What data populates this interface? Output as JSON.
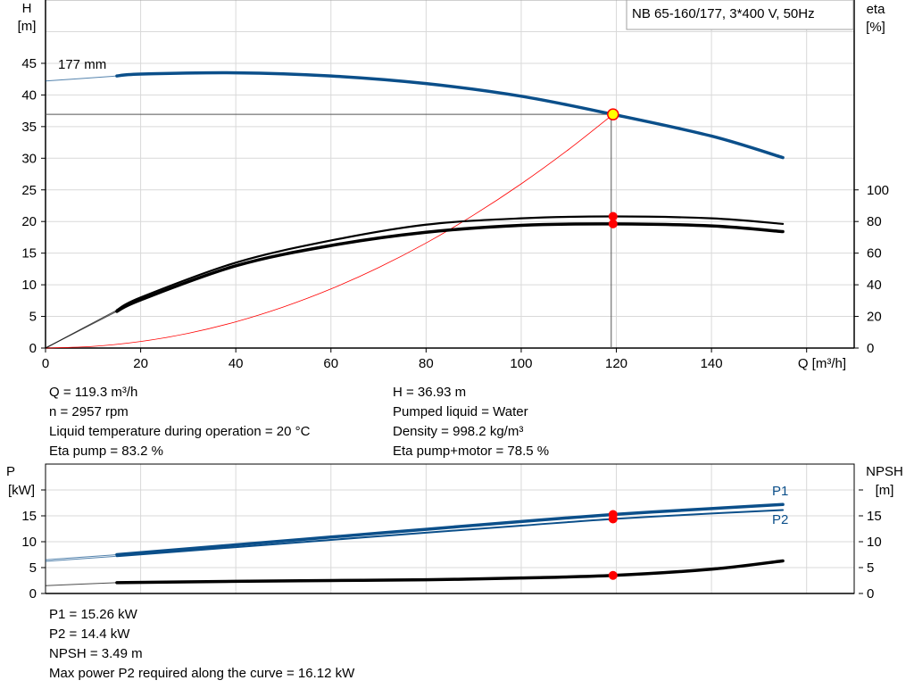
{
  "title_box": "NB 65-160/177, 3*400 V, 50Hz",
  "colors": {
    "head": "#0b4f8a",
    "eta": "#000000",
    "system": "#ff0000",
    "op_point_fill": "#ffff00",
    "op_point_stroke": "#ff0000",
    "marker": "#ff0000",
    "power": "#0b4f8a",
    "npsh": "#000000",
    "grid": "#d9d9d9"
  },
  "chart_data": [
    {
      "type": "line",
      "xlabel": "Q [m³/h]",
      "ylabel": "H\n[m]",
      "ylabel_lines": [
        "H",
        "[m]"
      ],
      "y2label_lines": [
        "eta",
        "[%]"
      ],
      "xlim": [
        0,
        170
      ],
      "ylim": [
        0,
        55
      ],
      "y2lim": [
        0,
        220
      ],
      "xticks": [
        "0",
        "20",
        "40",
        "60",
        "80",
        "100",
        "120",
        "140"
      ],
      "yticks": [
        "0",
        "5",
        "10",
        "15",
        "20",
        "25",
        "30",
        "35",
        "40",
        "45"
      ],
      "y2ticks": [
        "0",
        "20",
        "40",
        "60",
        "80",
        "100"
      ],
      "grid": true,
      "curve_label": "177 mm",
      "series": [
        {
          "key": "head",
          "axis": "H",
          "extrapolated_to": 15,
          "x": [
            0,
            15,
            20,
            40,
            60,
            80,
            100,
            119.3,
            140,
            155
          ],
          "y": [
            42.2,
            43.0,
            43.3,
            43.5,
            43.0,
            41.8,
            39.8,
            36.93,
            33.5,
            30.1
          ]
        },
        {
          "key": "eta_pump",
          "axis": "eta",
          "extrapolated_to": 15,
          "x": [
            0,
            15,
            20,
            40,
            60,
            80,
            100,
            119.3,
            140,
            155
          ],
          "y": [
            0,
            24,
            32,
            54,
            68,
            78,
            82,
            83.2,
            82,
            78.5
          ]
        },
        {
          "key": "eta_pump_motor",
          "axis": "eta",
          "extrapolated_to": 15,
          "x": [
            0,
            15,
            20,
            40,
            60,
            80,
            100,
            119.3,
            140,
            155
          ],
          "y": [
            0,
            23.2,
            30.5,
            52,
            64.8,
            73.2,
            77.6,
            78.5,
            77.2,
            73.6
          ]
        },
        {
          "key": "system",
          "axis": "H",
          "x": [
            0,
            10,
            20,
            30,
            40,
            50,
            60,
            70,
            80,
            90,
            100,
            110,
            119.3
          ],
          "y": [
            0,
            0.26,
            1.04,
            2.33,
            4.15,
            6.49,
            9.34,
            12.71,
            16.6,
            21.02,
            25.95,
            31.4,
            36.93
          ]
        }
      ],
      "operating_point": {
        "Q": 119.3,
        "H": 36.93,
        "eta_pump": 83.2,
        "eta_pump_motor": 78.5
      }
    },
    {
      "type": "line",
      "ylabel_lines": [
        "P",
        "[kW]"
      ],
      "y2label_lines": [
        "NPSH",
        "[m]"
      ],
      "xlim": [
        0,
        170
      ],
      "ylim": [
        0,
        25
      ],
      "yticks": [
        "0",
        "5",
        "10",
        "15"
      ],
      "y2ticks": [
        "0",
        "5",
        "10",
        "15"
      ],
      "grid": true,
      "series": [
        {
          "key": "P1",
          "name": "P1",
          "extrapolated_to": 15,
          "x": [
            0,
            15,
            40,
            60,
            80,
            100,
            119.3,
            140,
            155
          ],
          "y": [
            6.5,
            7.5,
            9.4,
            10.9,
            12.4,
            13.9,
            15.26,
            16.4,
            17.2
          ]
        },
        {
          "key": "P2",
          "name": "P2",
          "extrapolated_to": 15,
          "x": [
            0,
            15,
            40,
            60,
            80,
            100,
            119.3,
            140,
            155
          ],
          "y": [
            6.2,
            7.2,
            8.95,
            10.35,
            11.75,
            13.1,
            14.4,
            15.45,
            16.12
          ]
        },
        {
          "key": "NPSH",
          "extrapolated_to": 15,
          "x": [
            0,
            15,
            40,
            60,
            80,
            100,
            119.3,
            140,
            155
          ],
          "y": [
            1.5,
            2.1,
            2.35,
            2.5,
            2.65,
            3.0,
            3.49,
            4.7,
            6.3
          ]
        }
      ],
      "operating_point": {
        "Q": 119.3,
        "P1": 15.26,
        "P2": 14.4,
        "NPSH": 3.49
      }
    }
  ],
  "info_top": {
    "left": [
      "Q = 119.3 m³/h",
      "n = 2957 rpm",
      "Liquid temperature during operation = 20 °C",
      "Eta pump = 83.2 %"
    ],
    "right": [
      "H = 36.93 m",
      "Pumped liquid = Water",
      "Density = 998.2 kg/m³",
      "Eta pump+motor = 78.5 %"
    ]
  },
  "info_bottom": [
    "P1 = 15.26 kW",
    "P2 = 14.4 kW",
    "NPSH = 3.49 m",
    "Max power P2 required along the curve = 16.12 kW"
  ]
}
